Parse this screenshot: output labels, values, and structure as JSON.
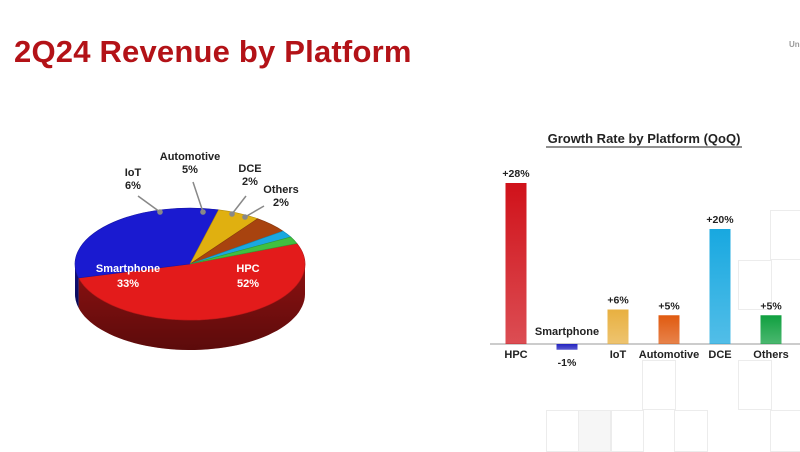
{
  "page": {
    "title": "2Q24 Revenue by Platform",
    "corner_text": "Un"
  },
  "chart_data": [
    {
      "type": "pie",
      "categories": [
        "HPC",
        "Smartphone",
        "IoT",
        "Automotive",
        "DCE",
        "Others"
      ],
      "values": [
        52,
        33,
        6,
        5,
        2,
        2
      ],
      "labels": [
        "52%",
        "33%",
        "6%",
        "5%",
        "2%",
        "2%"
      ],
      "colors": [
        "#e31b1b",
        "#1a1ad0",
        "#e0b010",
        "#a8430f",
        "#1aa8e0",
        "#40c040"
      ]
    },
    {
      "type": "bar",
      "title": "Growth Rate by Platform (QoQ)",
      "categories": [
        "HPC",
        "Smartphone",
        "IoT",
        "Automotive",
        "DCE",
        "Others"
      ],
      "values": [
        28,
        -1,
        6,
        5,
        20,
        5
      ],
      "labels": [
        "+28%",
        "-1%",
        "+6%",
        "+5%",
        "+20%",
        "+5%"
      ],
      "colors": [
        "#d0121a",
        "#2323c0",
        "#e8b040",
        "#e05a10",
        "#18a8e0",
        "#10a040"
      ],
      "ylim": [
        -1,
        28
      ]
    }
  ]
}
